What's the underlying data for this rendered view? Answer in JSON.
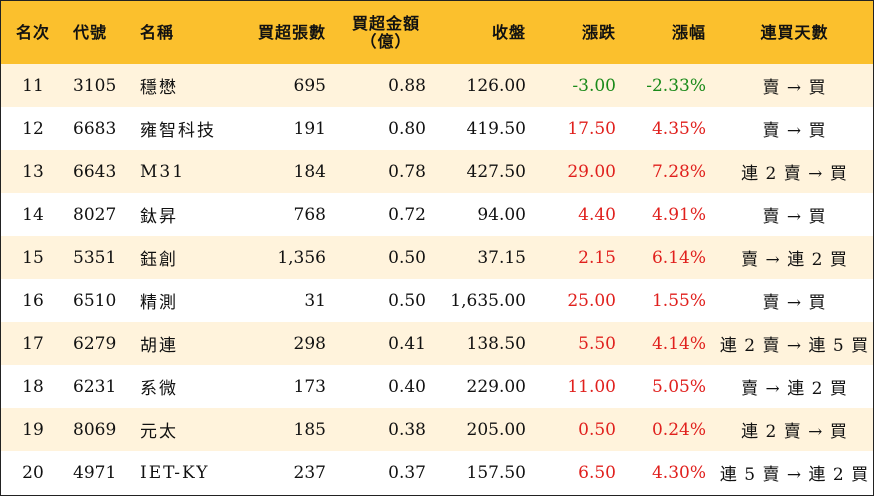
{
  "table": {
    "headers": {
      "rank": "名次",
      "code": "代號",
      "name": "名稱",
      "net_buy_lots": "買超張數",
      "net_buy_amount_l1": "買超金額",
      "net_buy_amount_l2": "（億）",
      "close": "收盤",
      "change": "漲跌",
      "change_pct": "漲幅",
      "buy_streak": "連買天數"
    },
    "colors": {
      "header_bg": "#fbc02d",
      "stripe_bg": "#fff3dc",
      "up": "#e0201d",
      "down": "#1a8a1a"
    },
    "rows": [
      {
        "rank": "11",
        "code": "3105",
        "name": "穩懋",
        "net_buy_lots": "695",
        "net_buy_amount": "0.88",
        "close": "126.00",
        "change": "-3.00",
        "change_pct": "-2.33%",
        "direction": "down",
        "buy_streak": "賣 → 買"
      },
      {
        "rank": "12",
        "code": "6683",
        "name": "雍智科技",
        "net_buy_lots": "191",
        "net_buy_amount": "0.80",
        "close": "419.50",
        "change": "17.50",
        "change_pct": "4.35%",
        "direction": "up",
        "buy_streak": "賣 → 買"
      },
      {
        "rank": "13",
        "code": "6643",
        "name": "M31",
        "net_buy_lots": "184",
        "net_buy_amount": "0.78",
        "close": "427.50",
        "change": "29.00",
        "change_pct": "7.28%",
        "direction": "up",
        "buy_streak": "連 2 賣 → 買"
      },
      {
        "rank": "14",
        "code": "8027",
        "name": "鈦昇",
        "net_buy_lots": "768",
        "net_buy_amount": "0.72",
        "close": "94.00",
        "change": "4.40",
        "change_pct": "4.91%",
        "direction": "up",
        "buy_streak": "賣 → 買"
      },
      {
        "rank": "15",
        "code": "5351",
        "name": "鈺創",
        "net_buy_lots": "1,356",
        "net_buy_amount": "0.50",
        "close": "37.15",
        "change": "2.15",
        "change_pct": "6.14%",
        "direction": "up",
        "buy_streak": "賣 → 連 2 買"
      },
      {
        "rank": "16",
        "code": "6510",
        "name": "精測",
        "net_buy_lots": "31",
        "net_buy_amount": "0.50",
        "close": "1,635.00",
        "change": "25.00",
        "change_pct": "1.55%",
        "direction": "up",
        "buy_streak": "賣 → 買"
      },
      {
        "rank": "17",
        "code": "6279",
        "name": "胡連",
        "net_buy_lots": "298",
        "net_buy_amount": "0.41",
        "close": "138.50",
        "change": "5.50",
        "change_pct": "4.14%",
        "direction": "up",
        "buy_streak": "連 2 賣 → 連 5 買"
      },
      {
        "rank": "18",
        "code": "6231",
        "name": "系微",
        "net_buy_lots": "173",
        "net_buy_amount": "0.40",
        "close": "229.00",
        "change": "11.00",
        "change_pct": "5.05%",
        "direction": "up",
        "buy_streak": "賣 → 連 2 買"
      },
      {
        "rank": "19",
        "code": "8069",
        "name": "元太",
        "net_buy_lots": "185",
        "net_buy_amount": "0.38",
        "close": "205.00",
        "change": "0.50",
        "change_pct": "0.24%",
        "direction": "up",
        "buy_streak": "連 2 賣 → 買"
      },
      {
        "rank": "20",
        "code": "4971",
        "name": "IET-KY",
        "net_buy_lots": "237",
        "net_buy_amount": "0.37",
        "close": "157.50",
        "change": "6.50",
        "change_pct": "4.30%",
        "direction": "up",
        "buy_streak": "連 5 賣 → 連 2 買"
      }
    ]
  }
}
